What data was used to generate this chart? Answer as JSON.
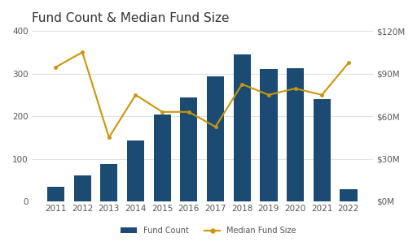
{
  "title": "Fund Count & Median Fund Size",
  "years": [
    2011,
    2012,
    2013,
    2014,
    2015,
    2016,
    2017,
    2018,
    2019,
    2020,
    2021,
    2022
  ],
  "fund_count": [
    35,
    60,
    88,
    142,
    204,
    244,
    293,
    344,
    311,
    312,
    240,
    28
  ],
  "line_values": [
    315,
    350,
    150,
    250,
    210,
    210,
    175,
    275,
    250,
    265,
    250,
    325
  ],
  "bar_color": "#1B4B72",
  "line_color": "#C8960C",
  "ylim_left": [
    0,
    400
  ],
  "yticks_left": [
    0,
    100,
    200,
    300,
    400
  ],
  "ytick_labels_left": [
    "0",
    "100",
    "200",
    "300",
    "400"
  ],
  "ytick_labels_right": [
    "$0M",
    "$30M",
    "$60M",
    "$90M",
    "$120M"
  ],
  "yticks_right_positions": [
    0,
    100,
    200,
    300,
    400
  ],
  "background_color": "#ffffff",
  "title_fontsize": 11,
  "tick_fontsize": 7.5,
  "legend_labels": [
    "Fund Count",
    "Median Fund Size"
  ],
  "grid_color": "#e0e0e0",
  "title_color": "#333333",
  "tick_color": "#aaaaaa",
  "label_color": "#555555"
}
